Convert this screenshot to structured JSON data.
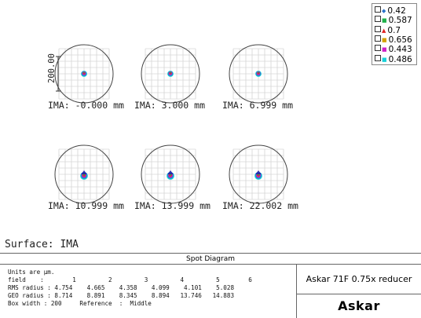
{
  "legend": [
    {
      "label": "0.42",
      "color": "#2a72c9",
      "mark": "◆"
    },
    {
      "label": "0.587",
      "color": "#21b14b",
      "mark": "■"
    },
    {
      "label": "0.7",
      "color": "#e02020",
      "mark": "▲"
    },
    {
      "label": "0.656",
      "color": "#d4a000",
      "mark": "■"
    },
    {
      "label": "0.443",
      "color": "#d020c8",
      "mark": "■"
    },
    {
      "label": "0.486",
      "color": "#18d0d8",
      "mark": "■"
    }
  ],
  "scale_label": "200.00",
  "fields": [
    {
      "label": "IMA: -0.000 mm"
    },
    {
      "label": "IMA: 3.000 mm"
    },
    {
      "label": "IMA: 6.999 mm"
    },
    {
      "label": "IMA: 10.999 mm"
    },
    {
      "label": "IMA: 13.999 mm"
    },
    {
      "label": "IMA: 22.002 mm"
    }
  ],
  "surface_label": "Surface: IMA",
  "panel_title": "Spot Diagram",
  "stats": {
    "units": "Units are µm.",
    "field_row": "field    :        1         2         3         4         5        6",
    "rms_row": "RMS radius : 4.754    4.665    4.358    4.099    4.101    5.028",
    "geo_row": "GEO radius : 8.714    8.891    8.345    8.894   13.746   14.883",
    "box_row": "Box width : 200     Reference  :  Middle"
  },
  "subtitle": "Askar 71F 0.75x reducer",
  "brand": "Askar",
  "colors": {
    "grid": "#d6d6d6",
    "circle": "#444444"
  }
}
